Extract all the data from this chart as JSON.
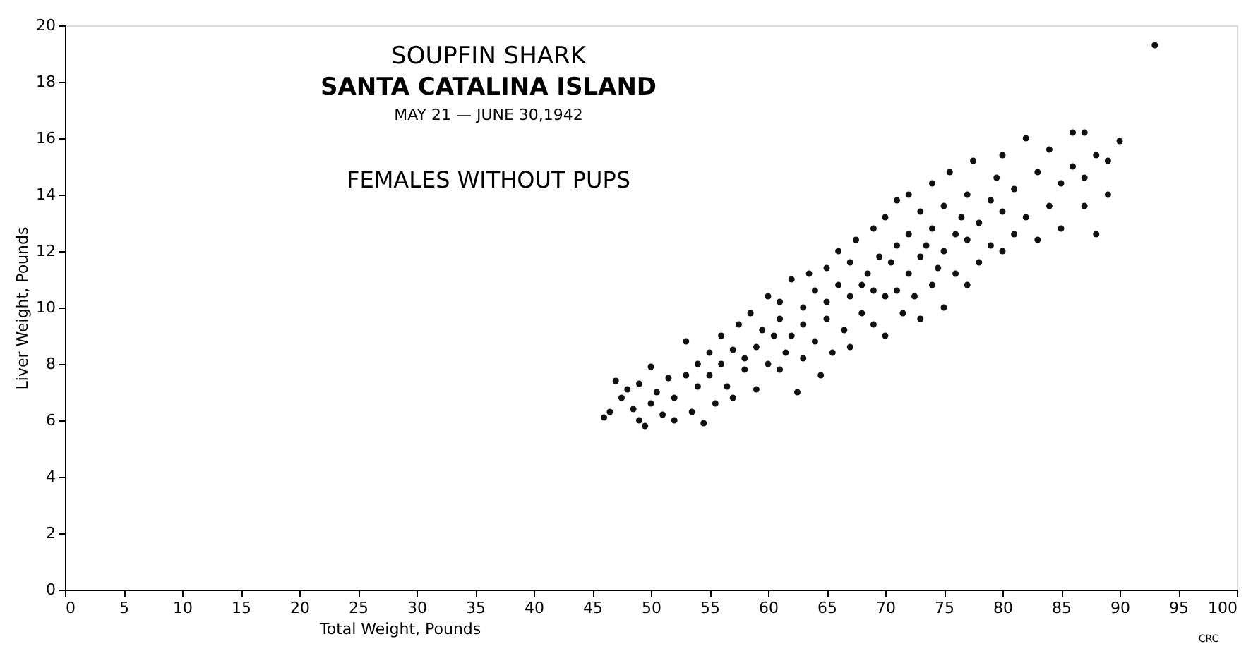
{
  "chart_data": {
    "type": "scatter",
    "title": "SOUPFIN SHARK",
    "subtitle": "SANTA CATALINA ISLAND",
    "annotations": [
      "MAY 21 — JUNE 30,1942",
      "FEMALES WITHOUT PUPS",
      "CRC"
    ],
    "xlabel": "Total Weight, Pounds",
    "ylabel": "Liver Weight, Pounds",
    "xlim": [
      0,
      100
    ],
    "ylim": [
      0,
      20
    ],
    "xticks": [
      0,
      5,
      10,
      15,
      20,
      25,
      30,
      35,
      40,
      45,
      50,
      55,
      60,
      65,
      70,
      75,
      80,
      85,
      90,
      95,
      100
    ],
    "yticks": [
      0,
      2,
      4,
      6,
      8,
      10,
      12,
      14,
      16,
      18,
      20
    ],
    "grid": false,
    "marker": "circle",
    "series": [
      {
        "color": "#111111",
        "x": [
          46,
          46.5,
          47,
          47.5,
          48,
          48.5,
          49,
          49,
          49.5,
          50,
          50,
          50.5,
          51,
          51.5,
          52,
          52,
          53,
          53,
          53.5,
          54,
          54,
          54.5,
          55,
          55,
          55.5,
          56,
          56,
          56.5,
          57,
          57,
          57.5,
          58,
          58,
          58.5,
          59,
          59,
          59.5,
          60,
          60,
          60.5,
          61,
          61,
          61,
          61.5,
          62,
          62,
          62.5,
          63,
          63,
          63,
          63.5,
          64,
          64,
          64.5,
          65,
          65,
          65,
          65.5,
          66,
          66,
          66.5,
          67,
          67,
          67,
          67.5,
          68,
          68,
          68.5,
          69,
          69,
          69,
          69.5,
          70,
          70,
          70,
          70.5,
          71,
          71,
          71,
          71.5,
          72,
          72,
          72,
          72.5,
          73,
          73,
          73,
          73.5,
          74,
          74,
          74,
          74.5,
          75,
          75,
          75,
          75.5,
          76,
          76,
          76.5,
          77,
          77,
          77,
          77.5,
          78,
          78,
          79,
          79,
          79.5,
          80,
          80,
          80,
          81,
          81,
          82,
          82,
          83,
          83,
          84,
          84,
          85,
          85,
          86,
          86,
          87,
          87,
          87,
          88,
          88,
          89,
          89,
          90,
          93
        ],
        "values": [
          6.1,
          6.3,
          7.4,
          6.8,
          7.1,
          6.4,
          6.0,
          7.3,
          5.8,
          7.9,
          6.6,
          7.0,
          6.2,
          7.5,
          6.0,
          6.8,
          8.8,
          7.6,
          6.3,
          7.2,
          8.0,
          5.9,
          7.6,
          8.4,
          6.6,
          8.0,
          9.0,
          7.2,
          8.5,
          6.8,
          9.4,
          7.8,
          8.2,
          9.8,
          7.1,
          8.6,
          9.2,
          10.4,
          8.0,
          9.0,
          7.8,
          9.6,
          10.2,
          8.4,
          9.0,
          11.0,
          7.0,
          8.2,
          10.0,
          9.4,
          11.2,
          8.8,
          10.6,
          7.6,
          9.6,
          11.4,
          10.2,
          8.4,
          10.8,
          12.0,
          9.2,
          10.4,
          8.6,
          11.6,
          12.4,
          9.8,
          10.8,
          11.2,
          12.8,
          9.4,
          10.6,
          11.8,
          10.4,
          13.2,
          9.0,
          11.6,
          12.2,
          10.6,
          13.8,
          9.8,
          11.2,
          12.6,
          14.0,
          10.4,
          11.8,
          13.4,
          9.6,
          12.2,
          10.8,
          14.4,
          12.8,
          11.4,
          12.0,
          13.6,
          10.0,
          14.8,
          12.6,
          11.2,
          13.2,
          12.4,
          14.0,
          10.8,
          15.2,
          13.0,
          11.6,
          13.8,
          12.2,
          14.6,
          13.4,
          15.4,
          12.0,
          12.6,
          14.2,
          16.0,
          13.2,
          14.8,
          12.4,
          15.6,
          13.6,
          14.4,
          12.8,
          16.2,
          15.0,
          16.2,
          13.6,
          14.6,
          15.4,
          12.6,
          15.2,
          14.0,
          15.9,
          19.3
        ]
      }
    ]
  }
}
